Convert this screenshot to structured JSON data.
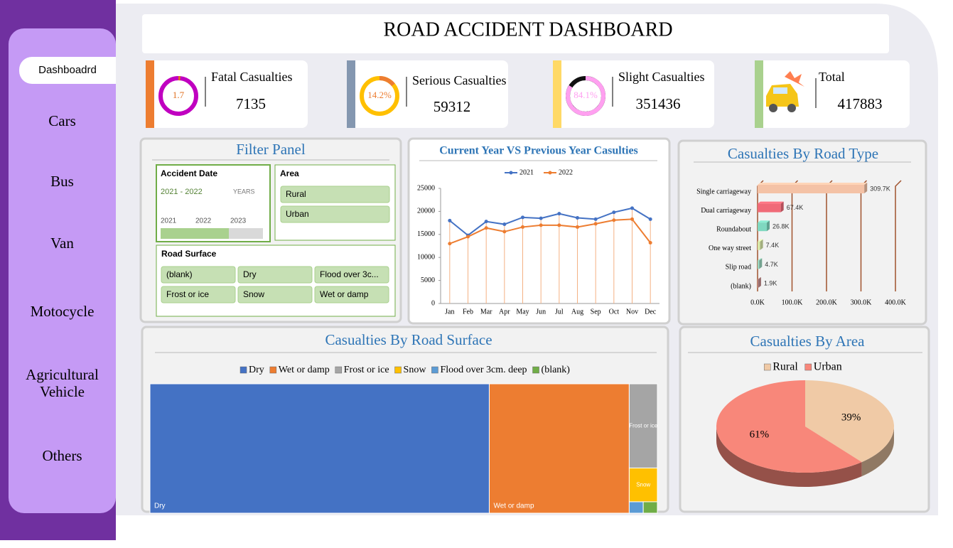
{
  "sidebar": [
    "Dashboadrd",
    "Cars",
    "Bus",
    "Van",
    "Motocycle",
    "Agricultural Vehicle",
    "Others"
  ],
  "title": "ROAD ACCIDENT DASHBOARD",
  "kpis": [
    {
      "label": "Fatal Casualties",
      "value": 7135,
      "share": 1.7,
      "accent": "#ed7d31",
      "ring_color": "#c000c0",
      "share_color": "#e07020"
    },
    {
      "label": "Serious Casualties",
      "value": 59312,
      "share": {
        "value": 14.2,
        "label": "14.2%"
      },
      "accent": "#8497b0",
      "ring_color": "#ffc000",
      "share_color": "#ed7d31"
    },
    {
      "label": "Slight Casualties",
      "value": 351436,
      "share": {
        "value": 84.1,
        "label": "84.1%"
      },
      "accent": "#ffd966",
      "ring_color": "#111111",
      "share_color": "#ffa0f0"
    },
    {
      "label": "Total",
      "value": 417883,
      "accent": "#a9d18e"
    }
  ],
  "filter_panel": {
    "title": "Filter Panel",
    "date": {
      "title": "Accident Date",
      "range": "2021 - 2022",
      "unit": "YEARS",
      "years": [
        2021,
        2022,
        2023
      ]
    },
    "area": {
      "title": "Area",
      "items": [
        "Rural",
        "Urban"
      ]
    },
    "surface": {
      "title": "Road Surface",
      "items": [
        "(blank)",
        "Dry",
        "Flood over 3c...",
        "Frost or ice",
        "Snow",
        "Wet or damp"
      ]
    }
  },
  "chart_data": [
    {
      "type": "line",
      "title": "Current Year VS Previous Year Casulties",
      "categories": [
        "Jan",
        "Feb",
        "Mar",
        "Apr",
        "May",
        "Jun",
        "Jul",
        "Aug",
        "Sep",
        "Oct",
        "Nov",
        "Dec"
      ],
      "series": [
        {
          "name": "2021",
          "color": "#4472c4",
          "values": [
            18000,
            14800,
            17800,
            17200,
            18700,
            18500,
            19500,
            18600,
            18300,
            19800,
            20700,
            18300
          ]
        },
        {
          "name": "2022",
          "color": "#ed7d31",
          "values": [
            13000,
            14500,
            16400,
            15600,
            16600,
            17000,
            17000,
            16600,
            17300,
            18100,
            18300,
            13200
          ]
        }
      ],
      "ylim": [
        0,
        25000
      ],
      "yticks": [
        0,
        5000,
        10000,
        15000,
        20000,
        25000
      ],
      "drop_lines": true
    },
    {
      "type": "hbar",
      "title": "Casualties By Road Type",
      "categories": [
        "Single carriageway",
        "Dual carriageway",
        "Roundabout",
        "One way street",
        "Slip road",
        "(blank)"
      ],
      "values": [
        309700,
        67400,
        26800,
        7400,
        4700,
        1900
      ],
      "value_labels": [
        "309.7K",
        "67.4K",
        "26.8K",
        "7.4K",
        "4.7K",
        "1.9K"
      ],
      "colors": [
        "#f4c2a6",
        "#f06a78",
        "#7fd8c0",
        "#d8e8a8",
        "#9bd8c0",
        "#c89090"
      ],
      "xlim": [
        0,
        400000
      ],
      "xticks": [
        {
          "value": 0,
          "label": "0.0K"
        },
        {
          "value": 100000,
          "label": "100.0K"
        },
        {
          "value": 200000,
          "label": "200.0K"
        },
        {
          "value": 300000,
          "label": "300.0K"
        },
        {
          "value": 400000,
          "label": "400.0K"
        }
      ],
      "grid": true
    },
    {
      "type": "treemap",
      "title": "Casualties By Road Surface",
      "categories": [
        "Dry",
        "Wet or damp",
        "Frost or ice",
        "Snow",
        "Flood over 3cm. deep",
        "(blank)"
      ],
      "values": [
        279445,
        115261,
        15083,
        6052,
        1017,
        1025
      ],
      "colors": [
        "#4472c4",
        "#ed7d31",
        "#a5a5a5",
        "#ffc000",
        "#5b9bd5",
        "#70ad47"
      ],
      "legend": "top"
    },
    {
      "type": "pie",
      "title": "Casualties By Area",
      "categories": [
        "Rural",
        "Urban"
      ],
      "values": [
        39,
        61
      ],
      "value_labels": [
        "39%",
        "61%"
      ],
      "colors": [
        "#f0caa6",
        "#f8877a"
      ],
      "legend": "top"
    }
  ]
}
